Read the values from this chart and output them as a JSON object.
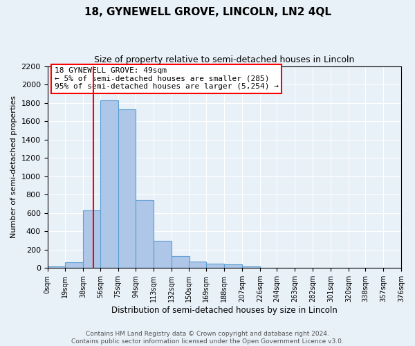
{
  "title": "18, GYNEWELL GROVE, LINCOLN, LN2 4QL",
  "subtitle": "Size of property relative to semi-detached houses in Lincoln",
  "xlabel": "Distribution of semi-detached houses by size in Lincoln",
  "ylabel": "Number of semi-detached properties",
  "annotation_title": "18 GYNEWELL GROVE: 49sqm",
  "annotation_line1": "← 5% of semi-detached houses are smaller (285)",
  "annotation_line2": "95% of semi-detached houses are larger (5,254) →",
  "footer_line1": "Contains HM Land Registry data © Crown copyright and database right 2024.",
  "footer_line2": "Contains public sector information licensed under the Open Government Licence v3.0.",
  "bar_left_edges": [
    0,
    19,
    38,
    56,
    75,
    94,
    113,
    132,
    150,
    169,
    188,
    207,
    226,
    244,
    263,
    282,
    301,
    320,
    338,
    357
  ],
  "bar_heights": [
    15,
    60,
    630,
    1830,
    1730,
    740,
    300,
    130,
    70,
    50,
    40,
    15,
    5,
    2,
    1,
    0,
    0,
    0,
    0,
    0
  ],
  "bar_widths": [
    19,
    19,
    19,
    19,
    19,
    19,
    19,
    19,
    19,
    19,
    19,
    19,
    19,
    19,
    19,
    19,
    19,
    19,
    19,
    19
  ],
  "bar_color": "#aec6e8",
  "bar_edgecolor": "#5a9fd4",
  "red_line_x": 49,
  "xlim": [
    0,
    376
  ],
  "ylim": [
    0,
    2200
  ],
  "yticks": [
    0,
    200,
    400,
    600,
    800,
    1000,
    1200,
    1400,
    1600,
    1800,
    2000,
    2200
  ],
  "xtick_labels": [
    "0sqm",
    "19sqm",
    "38sqm",
    "56sqm",
    "75sqm",
    "94sqm",
    "113sqm",
    "132sqm",
    "150sqm",
    "169sqm",
    "188sqm",
    "207sqm",
    "226sqm",
    "244sqm",
    "263sqm",
    "282sqm",
    "301sqm",
    "320sqm",
    "338sqm",
    "357sqm",
    "376sqm"
  ],
  "xtick_positions": [
    0,
    19,
    38,
    56,
    75,
    94,
    113,
    132,
    150,
    169,
    188,
    207,
    226,
    244,
    263,
    282,
    301,
    320,
    338,
    357,
    376
  ],
  "bg_color": "#e8f0f8",
  "plot_bg_color": "#e8f0f8",
  "grid_color": "#ffffff",
  "title_fontsize": 11,
  "subtitle_fontsize": 9,
  "annotation_fontsize": 8,
  "xlabel_fontsize": 8.5,
  "ylabel_fontsize": 8,
  "footer_fontsize": 6.5
}
